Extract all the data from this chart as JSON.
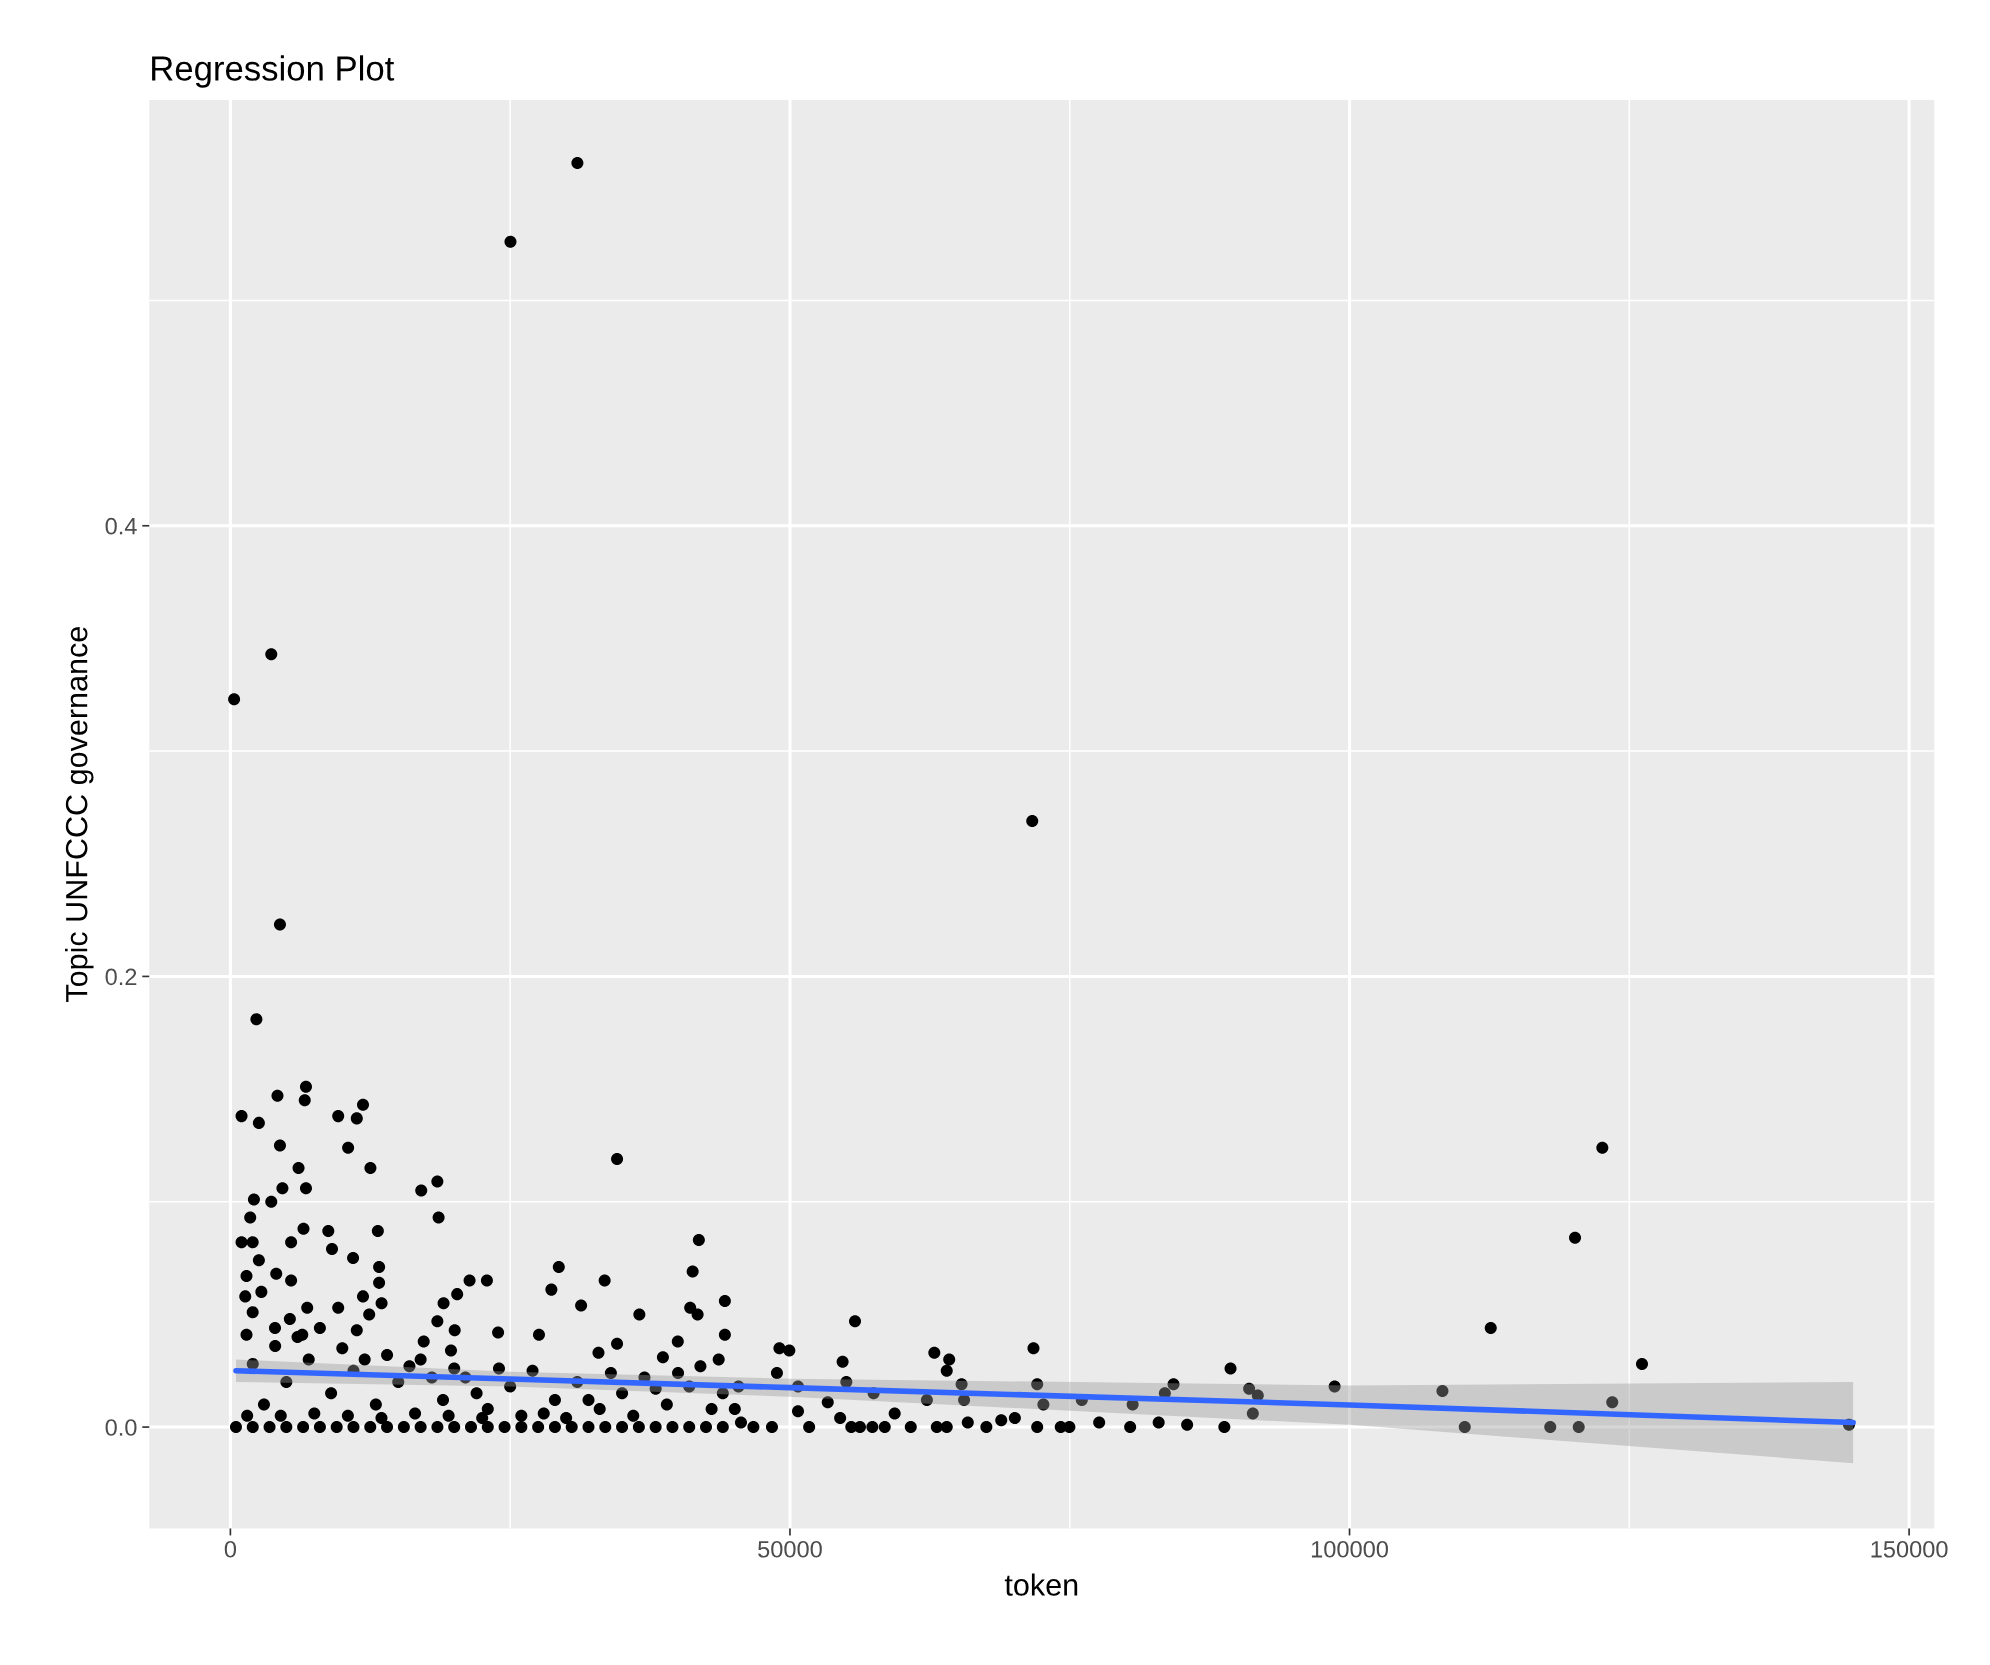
{
  "chart_data": {
    "type": "scatter",
    "title": "Regression Plot",
    "xlabel": "token",
    "ylabel": "Topic UNFCCC governance",
    "xlim": [
      -7250,
      152250
    ],
    "ylim": [
      -0.045,
      0.589
    ],
    "xticks": [
      0,
      {
        "value": 25000,
        "label": null
      },
      50000,
      {
        "value": 75000,
        "label": null
      },
      100000,
      {
        "value": 125000,
        "label": null
      },
      150000
    ],
    "yticks": [
      {
        "value": 0.0,
        "label": "0.0"
      },
      {
        "value": 0.1,
        "label": null
      },
      0.2,
      {
        "value": 0.3,
        "label": null
      },
      0.4,
      {
        "value": 0.5,
        "label": null
      }
    ],
    "grid": true,
    "legend": false,
    "marker": "circle",
    "series": [
      {
        "color": "#000000",
        "x": [
          31007,
          25027,
          3654,
          332,
          71650,
          4430,
          2325,
          6755,
          11850,
          4208,
          6644,
          997,
          2547,
          9634,
          11295,
          34551,
          122590,
          4430,
          6091,
          12514,
          10520,
          18494,
          17054,
          4651,
          6755,
          2104,
          3654,
          18605,
          1772,
          120150,
          41860,
          6534,
          8749,
          13178,
          997,
          1993,
          5426,
          9081,
          10963,
          2547,
          29346,
          13289,
          41306,
          1440,
          4097,
          5426,
          13289,
          22923,
          21373,
          33443,
          28682,
          2768,
          1329,
          20265,
          11850,
          44186,
          31339,
          19048,
          13510,
          6866,
          9634,
          41085,
          1993,
          41749,
          5315,
          36544,
          55813,
          12403,
          18494,
          20044,
          3986,
          112620,
          1440,
          23920,
          27574,
          44186,
          6423,
          11295,
          39978,
          34551,
          17275,
          49058,
          49944,
          62900,
          71760,
          19712,
          32890,
          38649,
          43632,
          54706,
          64230,
          126134,
          64009,
          48837,
          89369,
          65337,
          72092,
          84274,
          98669,
          108302,
          91030,
          83499,
          91804,
          76079,
          80620,
          91360,
          123476,
          110297,
          117937,
          120480,
          144627,
          85490,
          88815,
          82946,
          80399,
          77630,
          74970,
          74195,
          72092,
          70098,
          68880,
          67551,
          65890,
          64009,
          63123,
          60797,
          59358,
          58471,
          57364,
          56257,
          55481,
          54485,
          57475,
          53377,
          62236,
          51716,
          50720,
          48394,
          46733,
          45625,
          45072,
          45404,
          50720,
          55038,
          65559,
          72646,
          500,
          2000,
          3500,
          5000,
          6500,
          8000,
          9500,
          11000,
          12500,
          14000,
          15500,
          17000,
          18500,
          20000,
          21500,
          23000,
          24500,
          26000,
          27500,
          29000,
          30500,
          32000,
          33500,
          35000,
          36500,
          38000,
          39500,
          41000,
          42500,
          44000,
          3000,
          5000,
          7000,
          9000,
          11000,
          13000,
          15000,
          17000,
          19000,
          21000,
          23000,
          25000,
          27000,
          29000,
          31000,
          33000,
          35000,
          37000,
          39000,
          41000,
          43000,
          2000,
          4000,
          6000,
          8000,
          10000,
          12000,
          14000,
          16000,
          18000,
          20000,
          22000,
          24000,
          26000,
          28000,
          30000,
          32000,
          34000,
          36000,
          38000,
          40000,
          42000,
          44000,
          1500,
          4500,
          7500,
          10500,
          13500,
          16500,
          19500,
          22500
        ],
        "values": [
          0.561,
          0.526,
          0.343,
          0.323,
          0.269,
          0.223,
          0.181,
          0.151,
          0.143,
          0.147,
          0.145,
          0.138,
          0.135,
          0.138,
          0.137,
          0.119,
          0.124,
          0.125,
          0.115,
          0.115,
          0.124,
          0.109,
          0.105,
          0.106,
          0.106,
          0.101,
          0.1,
          0.093,
          0.093,
          0.084,
          0.083,
          0.088,
          0.087,
          0.087,
          0.082,
          0.082,
          0.082,
          0.079,
          0.075,
          0.074,
          0.071,
          0.071,
          0.069,
          0.067,
          0.068,
          0.065,
          0.064,
          0.065,
          0.065,
          0.065,
          0.061,
          0.06,
          0.058,
          0.059,
          0.058,
          0.056,
          0.054,
          0.055,
          0.055,
          0.053,
          0.053,
          0.053,
          0.051,
          0.05,
          0.048,
          0.05,
          0.047,
          0.05,
          0.047,
          0.043,
          0.044,
          0.044,
          0.041,
          0.042,
          0.041,
          0.041,
          0.041,
          0.043,
          0.038,
          0.037,
          0.038,
          0.035,
          0.034,
          0.033,
          0.035,
          0.034,
          0.033,
          0.031,
          0.03,
          0.029,
          0.03,
          0.028,
          0.025,
          0.024,
          0.026,
          0.019,
          0.019,
          0.019,
          0.018,
          0.016,
          0.017,
          0.015,
          0.014,
          0.012,
          0.01,
          0.006,
          0.011,
          0.0,
          0.0,
          0.0,
          0.001,
          0.001,
          0.0,
          0.002,
          0.0,
          0.002,
          0.0,
          0.0,
          0.0,
          0.004,
          0.003,
          0.0,
          0.002,
          0.0,
          0.0,
          0.0,
          0.006,
          0.0,
          0.0,
          0.0,
          0.0,
          0.004,
          0.015,
          0.011,
          0.012,
          0.0,
          0.007,
          0.0,
          0.0,
          0.002,
          0.008,
          0.018,
          0.018,
          0.02,
          0.012,
          0.01,
          0,
          0,
          0,
          0,
          0,
          0,
          0,
          0,
          0,
          0,
          0,
          0,
          0,
          0,
          0,
          0,
          0,
          0,
          0,
          0,
          0,
          0,
          0,
          0,
          0,
          0,
          0,
          0,
          0,
          0,
          0.01,
          0.02,
          0.03,
          0.015,
          0.025,
          0.01,
          0.02,
          0.03,
          0.012,
          0.022,
          0.008,
          0.018,
          0.025,
          0.012,
          0.02,
          0.008,
          0.015,
          0.022,
          0.01,
          0.018,
          0.008,
          0.028,
          0.036,
          0.04,
          0.044,
          0.035,
          0.03,
          0.032,
          0.027,
          0.022,
          0.026,
          0.015,
          0.026,
          0.005,
          0.006,
          0.004,
          0.012,
          0.024,
          0.005,
          0.017,
          0.024,
          0.027,
          0.015,
          0.005,
          0.005,
          0.006,
          0.005,
          0.004,
          0.006,
          0.005,
          0.004
        ]
      },
      {
        "type": "line",
        "color": "#3366ff",
        "marker": "none",
        "line_style": "solid",
        "x": [
          500,
          25000,
          50000,
          100000,
          145000
        ],
        "values": [
          0.025,
          0.0213,
          0.0175,
          0.0098,
          0.002
        ],
        "lower": [
          0.02,
          0.018,
          0.0135,
          0.001,
          -0.016
        ],
        "upper": [
          0.03,
          0.0245,
          0.0215,
          0.0185,
          0.02
        ]
      }
    ]
  }
}
